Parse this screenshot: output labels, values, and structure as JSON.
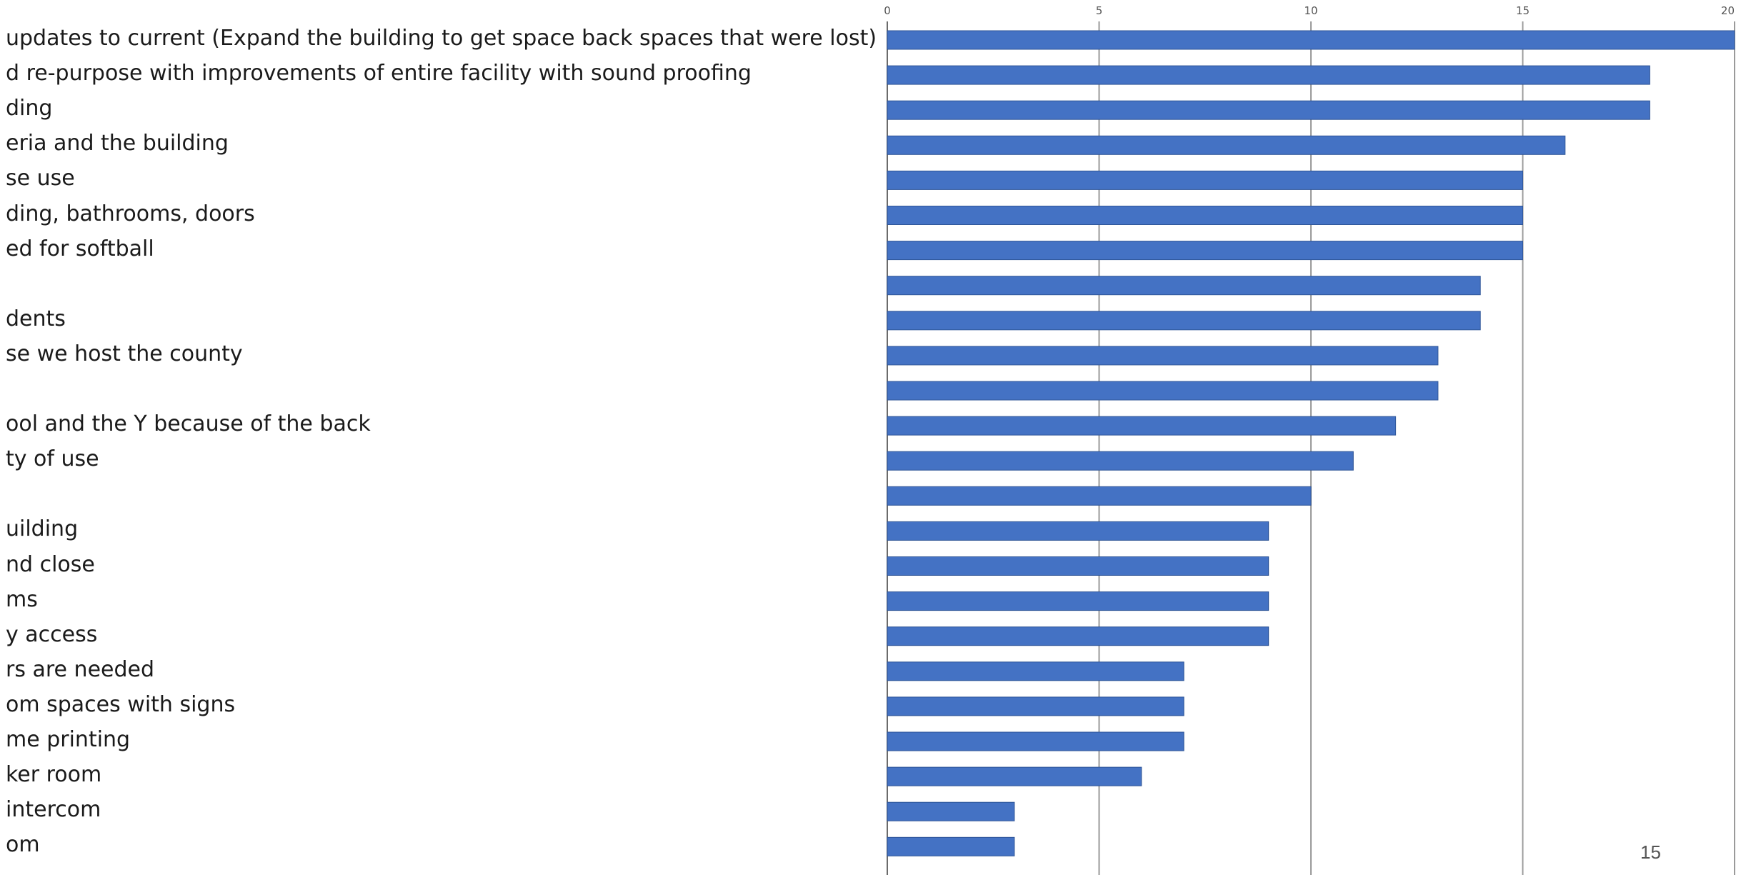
{
  "chart_data": {
    "type": "bar",
    "orientation": "horizontal",
    "categories": [
      "updates to current (Expand the building to get space back spaces that were lost)",
      "d re-purpose with improvements of entire facility with sound proofing",
      "ding",
      "eria and the building",
      "se use",
      "ding, bathrooms, doors",
      "ed for softball",
      "",
      "dents",
      "se we host the county",
      "",
      "ool and the Y because of the back",
      "ty of use",
      "",
      "uilding",
      "nd close",
      "ms",
      "y access",
      "rs are needed",
      "om spaces with signs",
      "me printing",
      "ker room",
      "intercom",
      "om"
    ],
    "values": [
      20,
      18,
      18,
      16,
      15,
      15,
      15,
      14,
      14,
      13,
      13,
      12,
      11,
      10,
      9,
      9,
      9,
      9,
      7,
      7,
      7,
      6,
      3,
      3
    ],
    "xlim": [
      0,
      20
    ],
    "ticks": [
      0,
      5,
      10,
      15,
      20
    ],
    "grid": true,
    "legend": "none",
    "title": "",
    "xlabel": "",
    "ylabel": ""
  },
  "colors": {
    "bar": "#4472C4",
    "bar_edge": "#2F5597",
    "grid": "#9a9a9a"
  },
  "slide_number": "15"
}
